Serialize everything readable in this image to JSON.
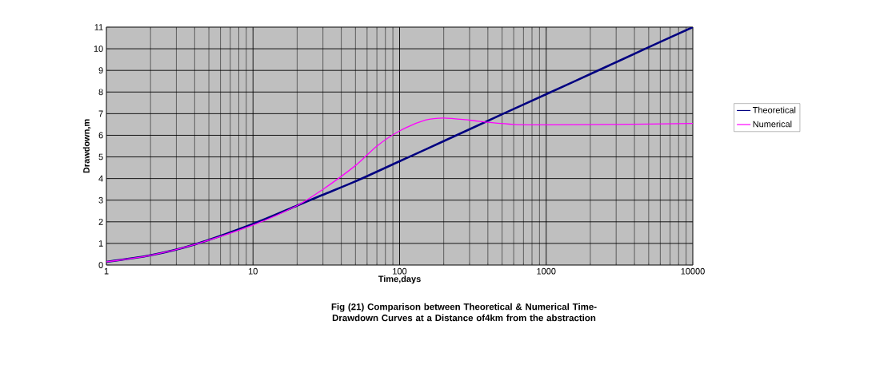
{
  "chart_data": {
    "type": "line",
    "xlabel": "Time,days",
    "ylabel": "Drawdown,m",
    "annotations": [
      "Fig (21) Comparison between Theoretical & Numerical Time-Drawdown Curves at a Distance of4km from the abstraction"
    ],
    "log": "x",
    "grid": true,
    "legend": "right",
    "marker": "none",
    "line_style": "solid",
    "xlim": [
      1,
      10000
    ],
    "xticks": [
      1,
      10,
      100,
      1000,
      10000
    ],
    "ylim": [
      0,
      11
    ],
    "yticks": [
      0,
      1,
      2,
      3,
      4,
      5,
      6,
      7,
      8,
      9,
      10,
      11
    ],
    "series": [
      {
        "name": "Theoretical",
        "color": "#000080",
        "x": [
          1,
          2,
          4,
          10,
          20,
          30,
          50,
          100,
          200,
          500,
          1000,
          2000,
          5000,
          10000
        ],
        "values": [
          0.15,
          0.45,
          0.95,
          1.9,
          2.75,
          3.25,
          3.87,
          4.8,
          5.73,
          6.97,
          7.9,
          8.83,
          10.07,
          11
        ]
      },
      {
        "name": "Numerical",
        "color": "#ff00ff",
        "x": [
          1,
          2,
          4,
          10,
          20,
          30,
          50,
          70,
          100,
          150,
          200,
          300,
          400,
          600,
          1000,
          3000,
          10000
        ],
        "values": [
          0.15,
          0.45,
          0.95,
          1.85,
          2.75,
          3.5,
          4.6,
          5.5,
          6.2,
          6.7,
          6.8,
          6.7,
          6.6,
          6.5,
          6.48,
          6.5,
          6.55
        ]
      }
    ]
  }
}
